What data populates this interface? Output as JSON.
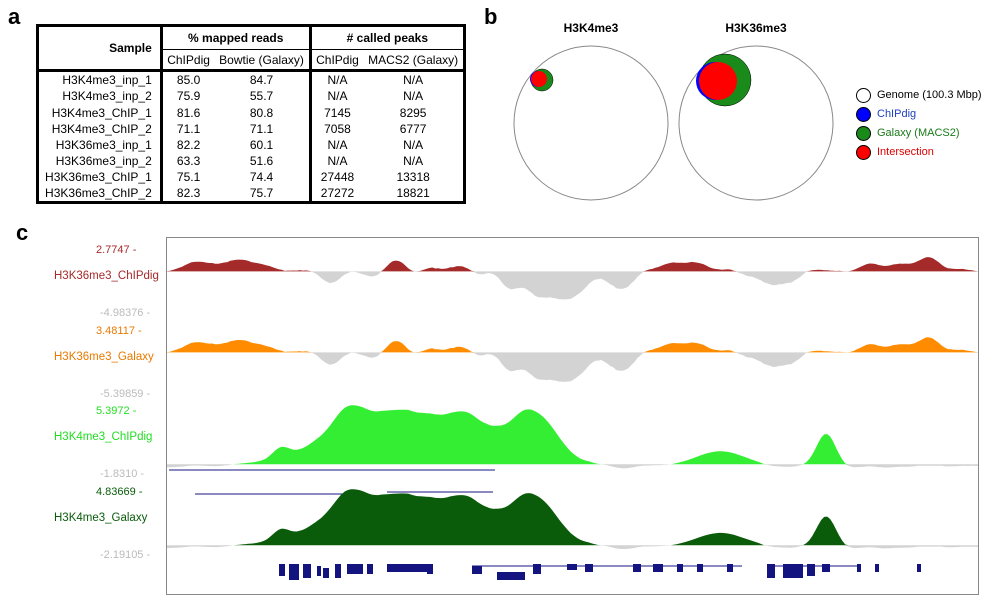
{
  "panel_labels": {
    "a": "a",
    "b": "b",
    "c": "c"
  },
  "table": {
    "sample_header": "Sample",
    "group1": "% mapped reads",
    "group2": "# called peaks",
    "sub": [
      "ChIPdig",
      "Bowtie (Galaxy)",
      "ChIPdig",
      "MACS2 (Galaxy)"
    ],
    "rows": [
      {
        "sample": "H3K4me3_inp_1",
        "mapped_chipdig": "85.0",
        "mapped_bowtie": "84.7",
        "peaks_chipdig": "N/A",
        "peaks_macs2": "N/A"
      },
      {
        "sample": "H3K4me3_inp_2",
        "mapped_chipdig": "75.9",
        "mapped_bowtie": "55.7",
        "peaks_chipdig": "N/A",
        "peaks_macs2": "N/A"
      },
      {
        "sample": "H3K4me3_ChIP_1",
        "mapped_chipdig": "81.6",
        "mapped_bowtie": "80.8",
        "peaks_chipdig": "7145",
        "peaks_macs2": "8295"
      },
      {
        "sample": "H3K4me3_ChIP_2",
        "mapped_chipdig": "71.1",
        "mapped_bowtie": "71.1",
        "peaks_chipdig": "7058",
        "peaks_macs2": "6777"
      },
      {
        "sample": "H3K36me3_inp_1",
        "mapped_chipdig": "82.2",
        "mapped_bowtie": "60.1",
        "peaks_chipdig": "N/A",
        "peaks_macs2": "N/A"
      },
      {
        "sample": "H3K36me3_inp_2",
        "mapped_chipdig": "63.3",
        "mapped_bowtie": "51.6",
        "peaks_chipdig": "N/A",
        "peaks_macs2": "N/A"
      },
      {
        "sample": "H3K36me3_ChIP_1",
        "mapped_chipdig": "75.1",
        "mapped_bowtie": "74.4",
        "peaks_chipdig": "27448",
        "peaks_macs2": "13318"
      },
      {
        "sample": "H3K36me3_ChIP_2",
        "mapped_chipdig": "82.3",
        "mapped_bowtie": "75.7",
        "peaks_chipdig": "27272",
        "peaks_macs2": "18821"
      }
    ]
  },
  "venn": {
    "titles": [
      "H3K4me3",
      "H3K36me3"
    ],
    "legend": [
      {
        "label": "Genome (100.3 Mbp)",
        "color": "#ffffff",
        "text_color": "#000000"
      },
      {
        "label": "ChIPdig",
        "color": "#0000ff",
        "text_color": "#1f3fbf"
      },
      {
        "label": "Galaxy (MACS2)",
        "color": "#1a8a1a",
        "text_color": "#1a7a1a"
      },
      {
        "label": "Intersection",
        "color": "#ff0000",
        "text_color": "#dd0000"
      }
    ]
  },
  "tracks": [
    {
      "name": "H3K36me3_ChIPdig",
      "max": "2.7747 -",
      "min": "-4.98376 -",
      "color": "#a52a2a",
      "label_color": "#a52a2a",
      "max_color": "#a52a2a"
    },
    {
      "name": "H3K36me3_Galaxy",
      "max": "3.48117 -",
      "min": "-5.39859 -",
      "color": "#ff8c00",
      "label_color": "#e87a00",
      "max_color": "#e87a00"
    },
    {
      "name": "H3K4me3_ChIPdig",
      "max": "5.3972 -",
      "min": "-1.8310 -",
      "color": "#33ee33",
      "label_color": "#22dd22",
      "max_color": "#22dd22"
    },
    {
      "name": "H3K4me3_Galaxy",
      "max": "4.83669 -",
      "min": "-2.19105 -",
      "color": "#0a5c0a",
      "label_color": "#0a5c0a",
      "max_color": "#0a5c0a"
    }
  ],
  "colors": {
    "negative_fill": "#d3d3d3",
    "gene_color": "#141480",
    "axis_min_text": "#bbbbbb"
  }
}
